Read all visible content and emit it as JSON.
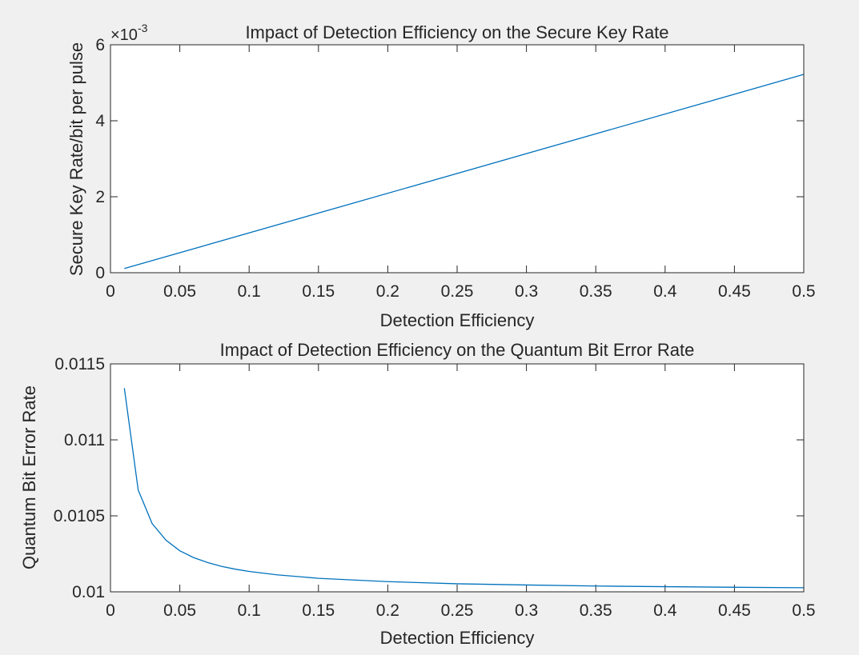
{
  "chart_data": [
    {
      "type": "line",
      "title": "Impact of Detection Efficiency on the Secure Key Rate",
      "xlabel": "Detection Efficiency",
      "ylabel": "Secure Key Rate/bit per pulse",
      "xlim": [
        0,
        0.5
      ],
      "ylim": [
        0,
        0.006
      ],
      "xticks": [
        "0",
        "0.05",
        "0.1",
        "0.15",
        "0.2",
        "0.25",
        "0.3",
        "0.35",
        "0.4",
        "0.45",
        "0.5"
      ],
      "yticks": [
        "0",
        "2",
        "4",
        "6"
      ],
      "ytick_values": [
        0,
        0.002,
        0.004,
        0.006
      ],
      "exponent_prefix": "×10",
      "exponent_power": "-3",
      "grid": false,
      "line_color": "#0072BD",
      "series": [
        {
          "x": [
            0.01,
            0.5
          ],
          "y": [
            0.00011,
            0.00522
          ]
        }
      ]
    },
    {
      "type": "line",
      "title": "Impact of Detection Efficiency on the Quantum Bit Error Rate",
      "xlabel": "Detection Efficiency",
      "ylabel": "Quantum Bit Error Rate",
      "xlim": [
        0,
        0.5
      ],
      "ylim": [
        0.01,
        0.0115
      ],
      "xticks": [
        "0",
        "0.05",
        "0.1",
        "0.15",
        "0.2",
        "0.25",
        "0.3",
        "0.35",
        "0.4",
        "0.45",
        "0.5"
      ],
      "yticks": [
        "0.01",
        "0.0105",
        "0.011",
        "0.0115"
      ],
      "ytick_values": [
        0.01,
        0.0105,
        0.011,
        0.0115
      ],
      "grid": false,
      "line_color": "#0072BD",
      "series": [
        {
          "x": [
            0.01,
            0.02,
            0.03,
            0.04,
            0.05,
            0.06,
            0.07,
            0.08,
            0.09,
            0.1,
            0.12,
            0.15,
            0.2,
            0.25,
            0.3,
            0.35,
            0.4,
            0.45,
            0.5
          ],
          "y": [
            0.01134,
            0.01067,
            0.01045,
            0.01034,
            0.01027,
            0.010225,
            0.010193,
            0.010168,
            0.010149,
            0.010134,
            0.010112,
            0.010089,
            0.010067,
            0.010053,
            0.010045,
            0.010038,
            0.010034,
            0.01003,
            0.010027
          ]
        }
      ]
    }
  ]
}
